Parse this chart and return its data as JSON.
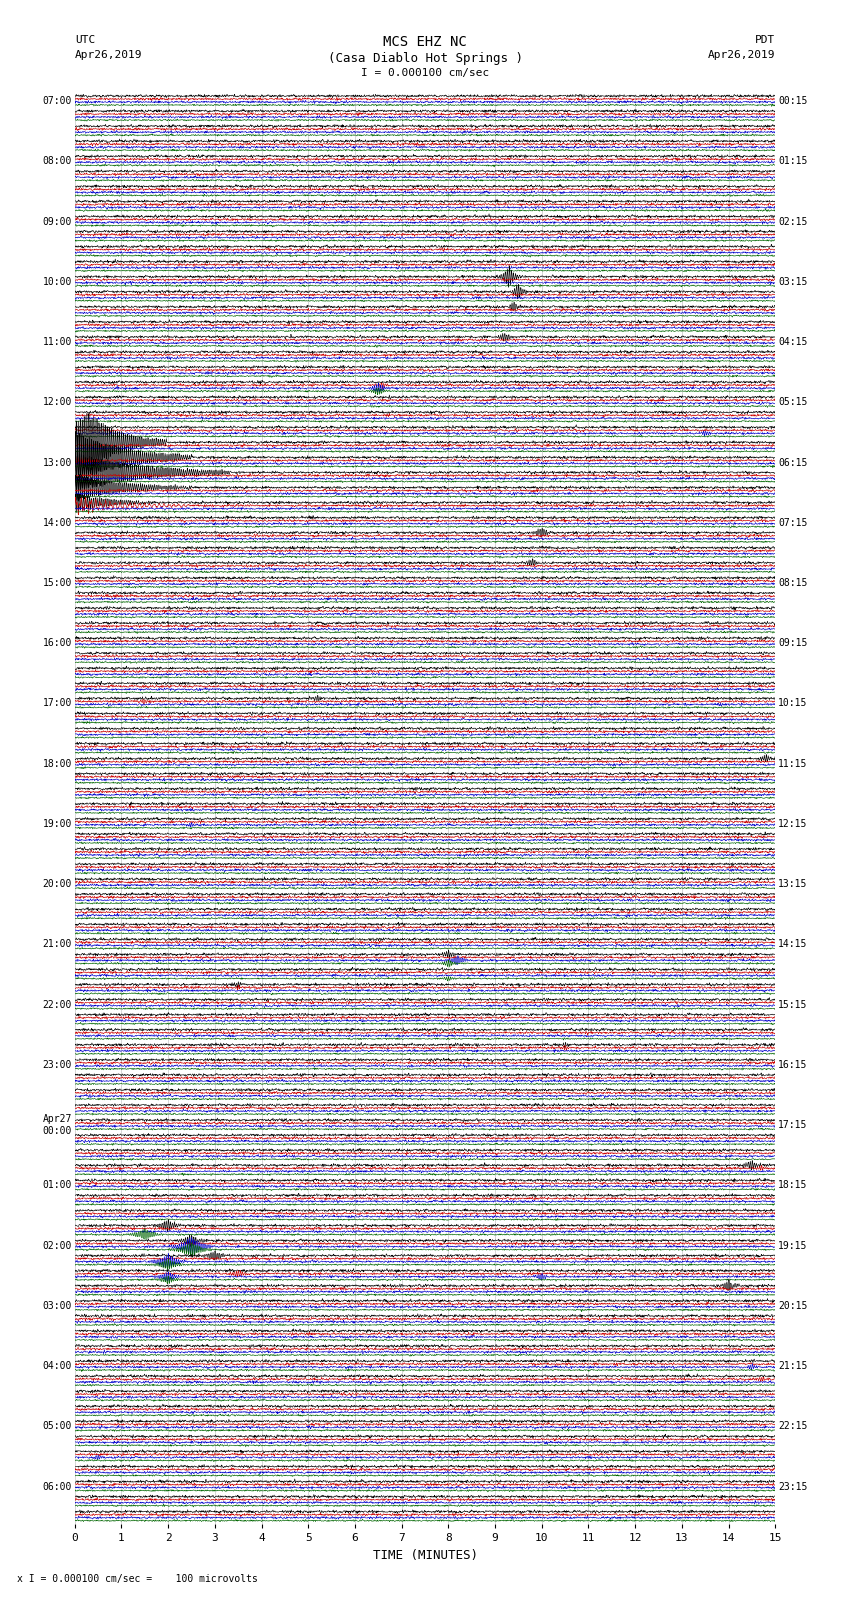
{
  "title_line1": "MCS EHZ NC",
  "title_line2": "(Casa Diablo Hot Springs )",
  "scale_text": "I = 0.000100 cm/sec",
  "bottom_scale_text": "x I = 0.000100 cm/sec =    100 microvolts",
  "utc_label": "UTC",
  "utc_date": "Apr26,2019",
  "pdt_label": "PDT",
  "pdt_date": "Apr26,2019",
  "xlabel": "TIME (MINUTES)",
  "bg_color": "#ffffff",
  "trace_colors": [
    "#000000",
    "#cc0000",
    "#0000cc",
    "#006600"
  ],
  "xlim": [
    0,
    15
  ],
  "xticks": [
    0,
    1,
    2,
    3,
    4,
    5,
    6,
    7,
    8,
    9,
    10,
    11,
    12,
    13,
    14,
    15
  ],
  "left_times_utc": [
    "07:00",
    "",
    "",
    "",
    "08:00",
    "",
    "",
    "",
    "09:00",
    "",
    "",
    "",
    "10:00",
    "",
    "",
    "",
    "11:00",
    "",
    "",
    "",
    "12:00",
    "",
    "",
    "",
    "13:00",
    "",
    "",
    "",
    "14:00",
    "",
    "",
    "",
    "15:00",
    "",
    "",
    "",
    "16:00",
    "",
    "",
    "",
    "17:00",
    "",
    "",
    "",
    "18:00",
    "",
    "",
    "",
    "19:00",
    "",
    "",
    "",
    "20:00",
    "",
    "",
    "",
    "21:00",
    "",
    "",
    "",
    "22:00",
    "",
    "",
    "",
    "23:00",
    "",
    "",
    "",
    "Apr27\n00:00",
    "",
    "",
    "",
    "01:00",
    "",
    "",
    "",
    "02:00",
    "",
    "",
    "",
    "03:00",
    "",
    "",
    "",
    "04:00",
    "",
    "",
    "",
    "05:00",
    "",
    "",
    "",
    "06:00",
    "",
    ""
  ],
  "right_times_pdt": [
    "00:15",
    "",
    "",
    "",
    "01:15",
    "",
    "",
    "",
    "02:15",
    "",
    "",
    "",
    "03:15",
    "",
    "",
    "",
    "04:15",
    "",
    "",
    "",
    "05:15",
    "",
    "",
    "",
    "06:15",
    "",
    "",
    "",
    "07:15",
    "",
    "",
    "",
    "08:15",
    "",
    "",
    "",
    "09:15",
    "",
    "",
    "",
    "10:15",
    "",
    "",
    "",
    "11:15",
    "",
    "",
    "",
    "12:15",
    "",
    "",
    "",
    "13:15",
    "",
    "",
    "",
    "14:15",
    "",
    "",
    "",
    "15:15",
    "",
    "",
    "",
    "16:15",
    "",
    "",
    "",
    "17:15",
    "",
    "",
    "",
    "18:15",
    "",
    "",
    "",
    "19:15",
    "",
    "",
    "",
    "20:15",
    "",
    "",
    "",
    "21:15",
    "",
    "",
    "",
    "22:15",
    "",
    "",
    "",
    "23:15",
    "",
    ""
  ],
  "fig_width": 8.5,
  "fig_height": 16.13,
  "dpi": 100,
  "events": [
    {
      "row": 12,
      "ci": 0,
      "t": 9.3,
      "amp": 18,
      "dur": 30
    },
    {
      "row": 13,
      "ci": 0,
      "t": 9.5,
      "amp": 12,
      "dur": 25
    },
    {
      "row": 14,
      "ci": 0,
      "t": 9.4,
      "amp": 8,
      "dur": 20
    },
    {
      "row": 16,
      "ci": 0,
      "t": 9.2,
      "amp": 8,
      "dur": 20
    },
    {
      "row": 19,
      "ci": 2,
      "t": 6.5,
      "amp": 10,
      "dur": 30
    },
    {
      "row": 19,
      "ci": 3,
      "t": 6.5,
      "amp": 10,
      "dur": 30
    },
    {
      "row": 19,
      "ci": 1,
      "t": 6.6,
      "amp": 6,
      "dur": 20
    },
    {
      "row": 22,
      "ci": 2,
      "t": 13.5,
      "amp": 6,
      "dur": 20
    },
    {
      "row": 23,
      "ci": 0,
      "t": 0.3,
      "amp": 45,
      "dur": 200
    },
    {
      "row": 24,
      "ci": 0,
      "t": 0.0,
      "amp": 40,
      "dur": 300
    },
    {
      "row": 25,
      "ci": 0,
      "t": 0.0,
      "amp": 30,
      "dur": 400
    },
    {
      "row": 26,
      "ci": 0,
      "t": 0.0,
      "amp": 20,
      "dur": 300
    },
    {
      "row": 27,
      "ci": 0,
      "t": 0.0,
      "amp": 15,
      "dur": 200
    },
    {
      "row": 27,
      "ci": 1,
      "t": 0.0,
      "amp": 8,
      "dur": 200
    },
    {
      "row": 24,
      "ci": 1,
      "t": 0.0,
      "amp": 8,
      "dur": 100
    },
    {
      "row": 29,
      "ci": 0,
      "t": 10.0,
      "amp": 8,
      "dur": 30
    },
    {
      "row": 31,
      "ci": 0,
      "t": 9.8,
      "amp": 6,
      "dur": 25
    },
    {
      "row": 40,
      "ci": 0,
      "t": 5.2,
      "amp": 5,
      "dur": 20
    },
    {
      "row": 40,
      "ci": 1,
      "t": 1.5,
      "amp": 4,
      "dur": 15
    },
    {
      "row": 48,
      "ci": 2,
      "t": 2.5,
      "amp": 5,
      "dur": 20
    },
    {
      "row": 57,
      "ci": 3,
      "t": 8.0,
      "amp": 8,
      "dur": 40
    },
    {
      "row": 57,
      "ci": 2,
      "t": 8.2,
      "amp": 8,
      "dur": 40
    },
    {
      "row": 57,
      "ci": 0,
      "t": 8.0,
      "amp": 6,
      "dur": 30
    },
    {
      "row": 58,
      "ci": 3,
      "t": 8.0,
      "amp": 6,
      "dur": 30
    },
    {
      "row": 59,
      "ci": 0,
      "t": 3.5,
      "amp": 5,
      "dur": 20
    },
    {
      "row": 59,
      "ci": 1,
      "t": 3.5,
      "amp": 4,
      "dur": 15
    },
    {
      "row": 63,
      "ci": 1,
      "t": 10.5,
      "amp": 4,
      "dur": 15
    },
    {
      "row": 63,
      "ci": 0,
      "t": 10.5,
      "amp": 4,
      "dur": 15
    },
    {
      "row": 71,
      "ci": 0,
      "t": 14.5,
      "amp": 8,
      "dur": 30
    },
    {
      "row": 71,
      "ci": 1,
      "t": 14.7,
      "amp": 5,
      "dur": 20
    },
    {
      "row": 76,
      "ci": 3,
      "t": 2.5,
      "amp": 18,
      "dur": 60
    },
    {
      "row": 76,
      "ci": 2,
      "t": 2.5,
      "amp": 18,
      "dur": 60
    },
    {
      "row": 76,
      "ci": 0,
      "t": 2.5,
      "amp": 10,
      "dur": 40
    },
    {
      "row": 77,
      "ci": 3,
      "t": 2.0,
      "amp": 14,
      "dur": 50
    },
    {
      "row": 77,
      "ci": 2,
      "t": 2.0,
      "amp": 14,
      "dur": 50
    },
    {
      "row": 77,
      "ci": 0,
      "t": 3.0,
      "amp": 8,
      "dur": 40
    },
    {
      "row": 78,
      "ci": 3,
      "t": 2.0,
      "amp": 10,
      "dur": 40
    },
    {
      "row": 78,
      "ci": 2,
      "t": 2.0,
      "amp": 10,
      "dur": 40
    },
    {
      "row": 78,
      "ci": 1,
      "t": 3.5,
      "amp": 6,
      "dur": 30
    },
    {
      "row": 78,
      "ci": 2,
      "t": 10.0,
      "amp": 6,
      "dur": 30
    },
    {
      "row": 75,
      "ci": 0,
      "t": 2.0,
      "amp": 10,
      "dur": 40
    },
    {
      "row": 75,
      "ci": 3,
      "t": 1.5,
      "amp": 14,
      "dur": 50
    },
    {
      "row": 79,
      "ci": 0,
      "t": 14.0,
      "amp": 8,
      "dur": 30
    },
    {
      "row": 84,
      "ci": 2,
      "t": 14.5,
      "amp": 6,
      "dur": 20
    },
    {
      "row": 44,
      "ci": 0,
      "t": 14.8,
      "amp": 6,
      "dur": 20
    },
    {
      "row": 90,
      "ci": 2,
      "t": 0.5,
      "amp": 5,
      "dur": 20
    },
    {
      "row": 85,
      "ci": 1,
      "t": 14.7,
      "amp": 5,
      "dur": 20
    }
  ]
}
